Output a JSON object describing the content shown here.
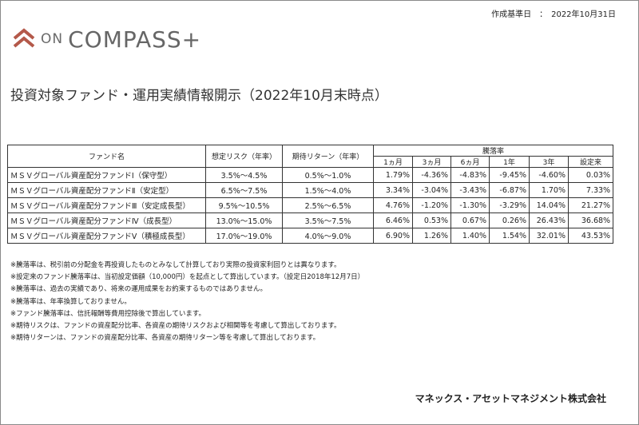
{
  "header": {
    "date_label": "作成基準日",
    "date_separator": "：",
    "date": "2022年10月31日"
  },
  "logo": {
    "prefix": "ON",
    "name": "COMPASS+"
  },
  "title": "投資対象ファンド・運用実績情報開示（2022年10月末時点）",
  "table": {
    "headers": {
      "fund_name": "ファンド名",
      "expected_risk": "想定リスク（年率）",
      "expected_return": "期待リターン（年率）",
      "performance": "騰落率",
      "periods": [
        "1ヵ月",
        "3ヵ月",
        "6ヵ月",
        "1年",
        "3年",
        "設定来"
      ]
    },
    "rows": [
      [
        "ＭＳＶグローバル資産配分ファンドⅠ（保守型）",
        "3.5%～4.5%",
        "0.5%～1.0%",
        "1.79%",
        "-4.36%",
        "-4.83%",
        "-9.45%",
        "-4.60%",
        "0.03%"
      ],
      [
        "ＭＳＶグローバル資産配分ファンドⅡ（安定型）",
        "6.5%～7.5%",
        "1.5%～4.0%",
        "3.34%",
        "-3.04%",
        "-3.43%",
        "-6.87%",
        "1.70%",
        "7.33%"
      ],
      [
        "ＭＳＶグローバル資産配分ファンドⅢ（安定成長型）",
        "9.5%～10.5%",
        "2.5%～6.5%",
        "4.76%",
        "-1.20%",
        "-1.30%",
        "-3.29%",
        "14.04%",
        "21.27%"
      ],
      [
        "ＭＳＶグローバル資産配分ファンドⅣ（成長型）",
        "13.0%～15.0%",
        "3.5%～7.5%",
        "6.46%",
        "0.53%",
        "0.67%",
        "0.26%",
        "26.43%",
        "36.68%"
      ],
      [
        "ＭＳＶグローバル資産配分ファンドⅤ（積極成長型）",
        "17.0%～19.0%",
        "4.0%～9.0%",
        "6.90%",
        "1.26%",
        "1.40%",
        "1.54%",
        "32.01%",
        "43.53%"
      ]
    ]
  },
  "notes": [
    "※騰落率は、税引前の分配金を再投資したものとみなして計算しており実際の投資家利回りとは異なります。",
    "※設定来のファンド騰落率は、当初設定価額（10,000円）を起点として算出しています。（設定日2018年12月7日）",
    "※騰落率は、過去の実績であり、将来の運用成果をお約束するものではありません。",
    "※騰落率は、年率換算しておりません。",
    "※ファンド騰落率は、信託報酬等費用控除後で算出しています。",
    "※期待リスクは、ファンドの資産配分比率、各資産の期待リスクおよび相関等を考慮して算出しております。",
    "※期待リターンは、ファンドの資産配分比率、各資産の期待リターン等を考慮して算出しております。"
  ],
  "footer": {
    "company": "マネックス・アセットマネジメント株式会社"
  }
}
